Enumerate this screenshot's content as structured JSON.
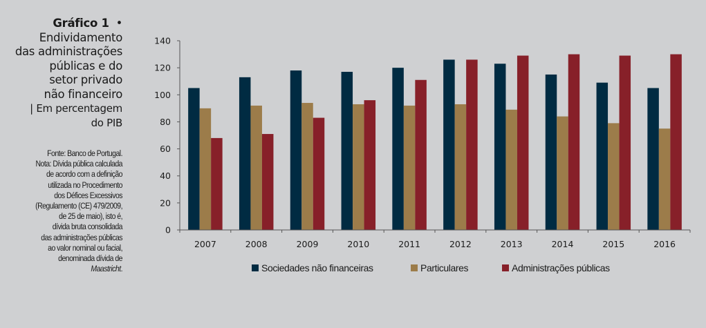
{
  "sidebar": {
    "title_bold": "Gráfico 1",
    "title_bullet": "•",
    "title_lines": [
      "Endividamento",
      "das administrações",
      "públicas e do",
      "setor privado",
      "não financeiro"
    ],
    "unit_lines": [
      "| Em percentagem",
      "do PIB"
    ],
    "note_lines": [
      "Fonte: Banco de Portugal.",
      "Nota: Dívida pública calculada",
      "de acordo com a definição",
      "utilizada no Procedimento",
      "dos Défices Excessivos",
      "(Regulamento (CE) 479/2009,",
      "de 25 de maio), isto é,",
      "dívida bruta consolidada",
      "das administrações públicas",
      "ao valor nominal ou facial,",
      "denominada dívida de"
    ],
    "note_italic": "Maastricht",
    "note_end": "."
  },
  "chart_data": {
    "type": "bar",
    "title": "Endividamento das administrações públicas e do setor privado não financeiro",
    "xlabel": "",
    "ylabel": "Em percentagem do PIB",
    "ylim": [
      0,
      140
    ],
    "yticks": [
      0,
      20,
      40,
      60,
      80,
      100,
      120,
      140
    ],
    "grid": false,
    "legend_position": "bottom",
    "categories": [
      "2007",
      "2008",
      "2009",
      "2010",
      "2011",
      "2012",
      "2013",
      "2014",
      "2015",
      "2016"
    ],
    "series": [
      {
        "name": "Sociedades não financeiras",
        "color": "#002b42",
        "values": [
          105,
          113,
          118,
          117,
          120,
          126,
          123,
          115,
          109,
          105
        ]
      },
      {
        "name": "Particulares",
        "color": "#9c7c4a",
        "values": [
          90,
          92,
          94,
          93,
          92,
          93,
          89,
          84,
          79,
          75
        ]
      },
      {
        "name": "Administrações públicas",
        "color": "#872029",
        "values": [
          68,
          71,
          83,
          96,
          111,
          126,
          129,
          130,
          129,
          130
        ]
      }
    ]
  }
}
